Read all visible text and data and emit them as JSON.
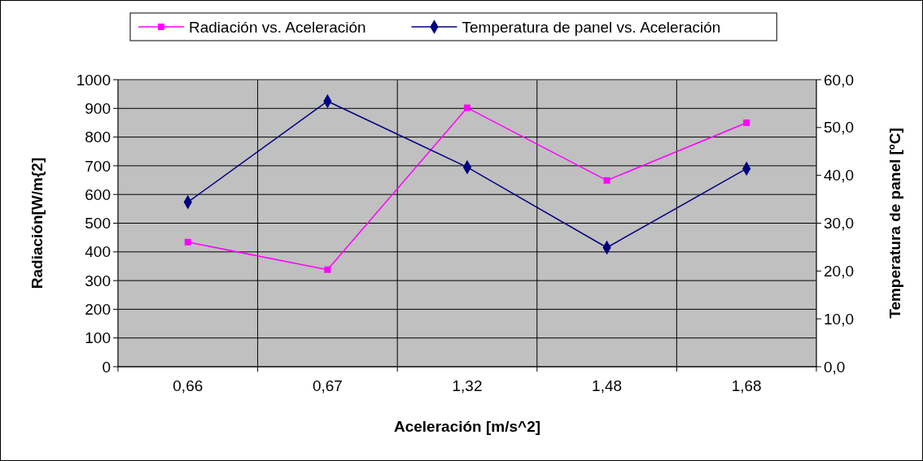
{
  "chart_data": {
    "type": "line",
    "xlabel": "Aceleración [m/s^2]",
    "ylabel": "Radiación[W/m{2]",
    "y2label": "Temperatura de panel [ºC]",
    "categories": [
      "0,66",
      "0,67",
      "1,32",
      "1,48",
      "1,68"
    ],
    "series": [
      {
        "name": "Radiación vs. Aceleración",
        "color": "#ff00ff",
        "marker": "square",
        "values": [
          434,
          338,
          902,
          649,
          850
        ]
      },
      {
        "name": "Temperatura de panel vs. Aceleración",
        "color": "#000080",
        "marker": "diamond",
        "axis": "y2",
        "values": [
          34.4,
          55.5,
          41.7,
          24.9,
          41.4
        ]
      }
    ],
    "ylim": [
      0,
      1000
    ],
    "yticks": [
      0,
      100,
      200,
      300,
      400,
      500,
      600,
      700,
      800,
      900,
      1000
    ],
    "y2lim": [
      0,
      60
    ],
    "y2ticks": [
      {
        "value": 0,
        "label": "0,0"
      },
      {
        "value": 10,
        "label": "10,0"
      },
      {
        "value": 20,
        "label": "20,0"
      },
      {
        "value": 30,
        "label": "30,0"
      },
      {
        "value": 40,
        "label": "40,0"
      },
      {
        "value": 50,
        "label": "50,0"
      },
      {
        "value": 60,
        "label": "60,0"
      }
    ],
    "grid": true,
    "legend": "top",
    "line_style": "solid"
  }
}
